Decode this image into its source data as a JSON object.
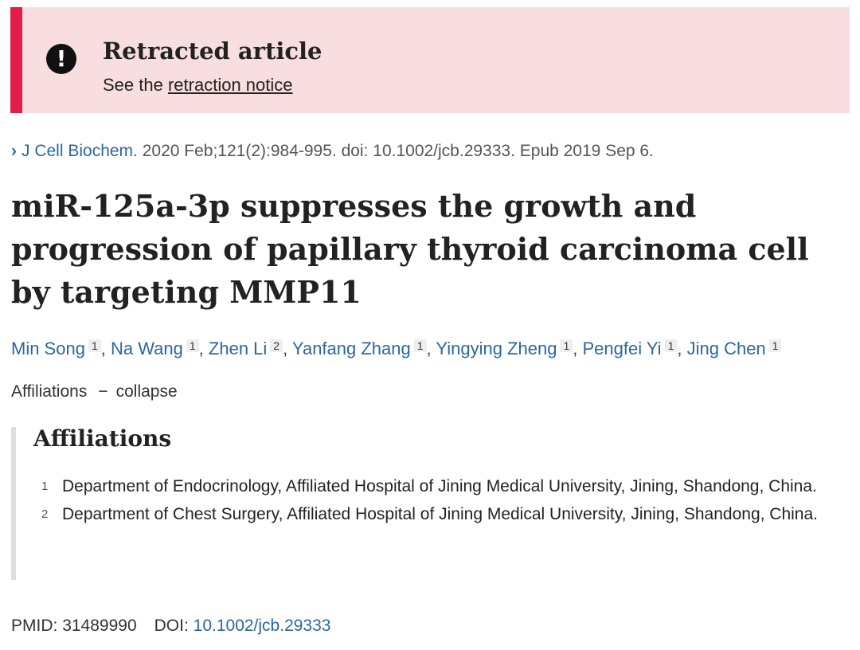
{
  "retraction": {
    "title": "Retracted article",
    "notice_prefix": "See the",
    "notice_link": "retraction notice",
    "accent_color": "#e11d48",
    "background_color": "#f8dede",
    "icon": "exclamation-circle-icon"
  },
  "citation": {
    "chevron": "›",
    "journal": "J Cell Biochem.",
    "details": " 2020 Feb;121(2):984-995. doi: 10.1002/jcb.29333. Epub 2019 Sep 6."
  },
  "article": {
    "title": "miR-125a-3p suppresses the growth and progression of papillary thyroid carcinoma cell by targeting MMP11"
  },
  "authors": [
    {
      "name": "Min Song",
      "aff": "1"
    },
    {
      "name": "Na Wang",
      "aff": "1"
    },
    {
      "name": "Zhen Li",
      "aff": "2"
    },
    {
      "name": "Yanfang Zhang",
      "aff": "1"
    },
    {
      "name": "Yingying Zheng",
      "aff": "1"
    },
    {
      "name": "Pengfei Yi",
      "aff": "1"
    },
    {
      "name": "Jing Chen",
      "aff": "1"
    }
  ],
  "affiliations_toggle": {
    "label": "Affiliations",
    "dash": "−",
    "action": "collapse"
  },
  "affiliations": {
    "heading": "Affiliations",
    "items": [
      {
        "num": "1",
        "text": "Department of Endocrinology, Affiliated Hospital of Jining Medical University, Jining, Shandong, China."
      },
      {
        "num": "2",
        "text": "Department of Chest Surgery, Affiliated Hospital of Jining Medical University, Jining, Shandong, China."
      }
    ]
  },
  "identifiers": {
    "pmid_label": "PMID:",
    "pmid": "31489990",
    "doi_label": "DOI:",
    "doi": "10.1002/jcb.29333"
  }
}
